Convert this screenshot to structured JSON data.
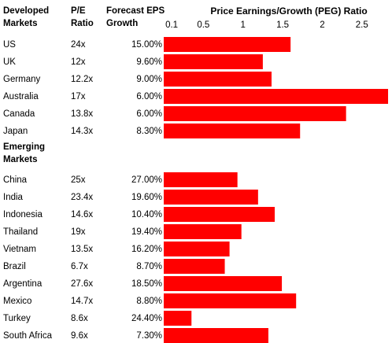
{
  "headers": {
    "market": [
      "Developed",
      "Markets"
    ],
    "pe": [
      "P/E",
      "Ratio"
    ],
    "eps": [
      "Forecast EPS",
      "Growth"
    ]
  },
  "emerging_header": [
    "Emerging",
    "Markets"
  ],
  "chart_data": {
    "type": "bar",
    "orientation": "horizontal",
    "title": "Price Earnings/Growth (PEG) Ratio",
    "xlim": [
      0,
      2.8
    ],
    "xticks": [
      "0.1",
      "0.5",
      "1",
      "1.5",
      "2",
      "2.5"
    ],
    "xtick_values": [
      0.1,
      0.5,
      1,
      1.5,
      2,
      2.5
    ],
    "bar_color": "#ff0000",
    "grid": false,
    "legend": "none",
    "groups": [
      {
        "categories": [
          "US",
          "UK",
          "Germany",
          "Australia",
          "Canada",
          "Japan"
        ],
        "pe": [
          "24x",
          "12x",
          "12.2x",
          "17x",
          "13.8x",
          "14.3x"
        ],
        "eps_growth": [
          "15.00%",
          "9.60%",
          "9.00%",
          "6.00%",
          "6.00%",
          "8.30%"
        ],
        "values": [
          1.6,
          1.25,
          1.36,
          2.83,
          2.3,
          1.72
        ]
      },
      {
        "categories": [
          "China",
          "India",
          "Indonesia",
          "Thailand",
          "Vietnam",
          "Brazil",
          "Argentina",
          "Mexico",
          "Turkey",
          "South Africa"
        ],
        "pe": [
          "25x",
          "23.4x",
          "14.6x",
          "19x",
          "13.5x",
          "6.7x",
          "27.6x",
          "14.7x",
          "8.6x",
          "9.6x"
        ],
        "eps_growth": [
          "27.00%",
          "19.60%",
          "10.40%",
          "19.40%",
          "16.20%",
          "8.70%",
          "18.50%",
          "8.80%",
          "24.40%",
          "7.30%"
        ],
        "values": [
          0.93,
          1.19,
          1.4,
          0.98,
          0.83,
          0.77,
          1.49,
          1.67,
          0.35,
          1.32
        ]
      }
    ]
  }
}
